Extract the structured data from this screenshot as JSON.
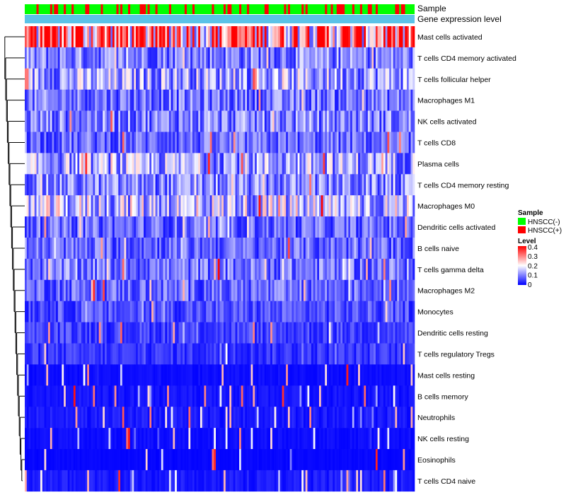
{
  "chart_data": {
    "type": "heatmap",
    "annotation_tracks": [
      "Sample",
      "Gene expression level"
    ],
    "rows": [
      "Mast cells activated",
      "T cells CD4 memory activated",
      "T cells follicular helper",
      "Macrophages M1",
      "NK cells activated",
      "T cells CD8",
      "Plasma cells",
      "T cells CD4 memory resting",
      "Macrophages M0",
      "Dendritic cells activated",
      "B cells naive",
      "T cells gamma delta",
      "Macrophages M2",
      "Monocytes",
      "Dendritic cells resting",
      "T cells regulatory  Tregs",
      "Mast cells resting",
      "B cells memory",
      "Neutrophils",
      "NK cells resting",
      "Eosinophils",
      "T cells CD4 naive"
    ],
    "row_mean_level": [
      0.3,
      0.1,
      0.13,
      0.09,
      0.1,
      0.08,
      0.13,
      0.1,
      0.15,
      0.08,
      0.08,
      0.09,
      0.08,
      0.06,
      0.05,
      0.04,
      0.01,
      0.015,
      0.02,
      0.01,
      0.005,
      0.02
    ],
    "n_samples": 200,
    "legend": {
      "sample_title": "Sample",
      "sample_entries": [
        {
          "label": "HNSCC(-)",
          "color": "#00ff00"
        },
        {
          "label": "HNSCC(+)",
          "color": "#ff0000"
        }
      ],
      "level_title": "Level",
      "level_ticks": [
        "0.4",
        "0.3",
        "0.2",
        "0.1",
        "0"
      ],
      "level_range": [
        0,
        0.4
      ],
      "colors": {
        "low": "#0000ff",
        "mid": "#ffffff",
        "high": "#ff0000"
      }
    },
    "gene_expression_color": "#5bc2e7"
  }
}
